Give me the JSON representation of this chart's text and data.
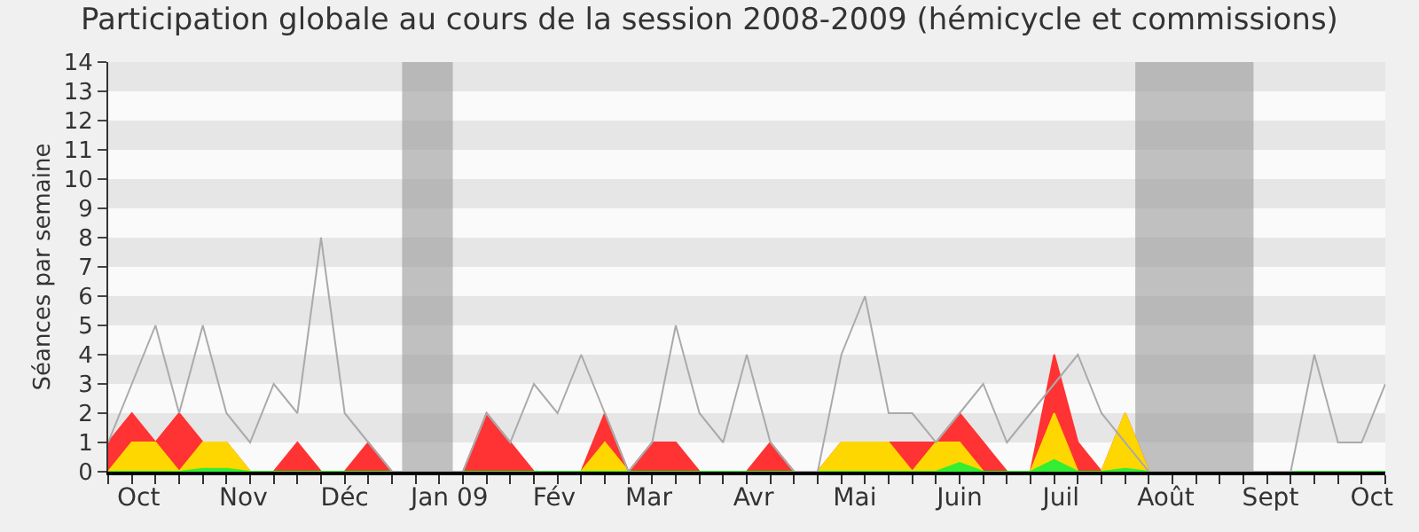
{
  "chart_data": {
    "type": "area",
    "title": "Participation globale au cours de la session 2008-2009 (hémicycle et commissions)",
    "ylabel": "Séances par semaine",
    "x": [
      "2008-09-22",
      "2008-09-29",
      "2008-10-06",
      "2008-10-13",
      "2008-10-20",
      "2008-10-27",
      "2008-11-03",
      "2008-11-10",
      "2008-11-17",
      "2008-11-24",
      "2008-12-01",
      "2008-12-08",
      "2008-12-15",
      "2008-12-22",
      "2008-12-29",
      "2009-01-05",
      "2009-01-12",
      "2009-01-19",
      "2009-01-26",
      "2009-02-02",
      "2009-02-09",
      "2009-02-16",
      "2009-02-23",
      "2009-03-02",
      "2009-03-09",
      "2009-03-16",
      "2009-03-23",
      "2009-03-30",
      "2009-04-06",
      "2009-04-13",
      "2009-04-20",
      "2009-04-27",
      "2009-05-04",
      "2009-05-11",
      "2009-05-18",
      "2009-05-25",
      "2009-06-01",
      "2009-06-08",
      "2009-06-15",
      "2009-06-22",
      "2009-06-29",
      "2009-07-06",
      "2009-07-13",
      "2009-07-20",
      "2009-07-27",
      "2009-08-03",
      "2009-08-10",
      "2009-08-17",
      "2009-08-24",
      "2009-08-31",
      "2009-09-07",
      "2009-09-14",
      "2009-09-21",
      "2009-09-28",
      "2009-10-05"
    ],
    "series": [
      {
        "color": "#ff3333",
        "values": [
          1,
          2,
          1,
          2,
          1,
          1,
          0,
          0,
          1,
          0,
          0,
          1,
          0,
          0,
          0,
          0,
          2,
          1,
          0,
          0,
          0,
          2,
          0,
          1,
          1,
          0,
          0,
          0,
          1,
          0,
          0,
          1,
          1,
          1,
          1,
          1,
          2,
          1,
          0,
          0,
          4,
          1,
          0,
          2,
          0,
          0,
          0,
          0,
          0,
          0,
          0,
          0,
          0,
          0,
          0
        ]
      },
      {
        "color": "#ffd700",
        "values": [
          0,
          1,
          1,
          0,
          1,
          1,
          0,
          0,
          0,
          0,
          0,
          0,
          0,
          0,
          0,
          0,
          0,
          0,
          0,
          0,
          0,
          1,
          0,
          0,
          0,
          0,
          0,
          0,
          0,
          0,
          0,
          1,
          1,
          1,
          0,
          1,
          1,
          0,
          0,
          0,
          2,
          0,
          0,
          2,
          0,
          0,
          0,
          0,
          0,
          0,
          0,
          0,
          0,
          0,
          0
        ]
      },
      {
        "color": "#33ee33",
        "values": [
          0,
          0,
          0,
          0,
          0.1,
          0.1,
          0,
          0,
          0,
          0,
          0,
          0,
          0,
          0,
          0,
          0,
          0,
          0,
          0,
          0,
          0,
          0,
          0,
          0,
          0,
          0,
          0,
          0,
          0,
          0,
          0,
          0,
          0,
          0,
          0,
          0,
          0.3,
          0,
          0,
          0,
          0.4,
          0,
          0,
          0.1,
          0,
          0,
          0,
          0,
          0,
          0,
          0,
          0,
          0,
          0,
          0
        ]
      },
      {
        "type": "line",
        "color": "#aaaaaa",
        "values": [
          1,
          3,
          5,
          2,
          5,
          2,
          1,
          3,
          2,
          8,
          2,
          1,
          0,
          0,
          0,
          0,
          2,
          1,
          3,
          2,
          4,
          2,
          0,
          1,
          5,
          2,
          1,
          4,
          1,
          0,
          0,
          4,
          6,
          2,
          2,
          1,
          2,
          3,
          1,
          2,
          3,
          4,
          2,
          1,
          0,
          0,
          0,
          0,
          0,
          0,
          0,
          4,
          1,
          1,
          3
        ]
      }
    ],
    "xlim": [
      "2008-09-22",
      "2009-10-05"
    ],
    "xticks": [
      {
        "value": "2008-10-01",
        "label": "Oct"
      },
      {
        "value": "2008-11-01",
        "label": "Nov"
      },
      {
        "value": "2008-12-01",
        "label": "Déc"
      },
      {
        "value": "2009-01-01",
        "label": "Jan 09"
      },
      {
        "value": "2009-02-01",
        "label": "Fév"
      },
      {
        "value": "2009-03-01",
        "label": "Mar"
      },
      {
        "value": "2009-04-01",
        "label": "Avr"
      },
      {
        "value": "2009-05-01",
        "label": "Mai"
      },
      {
        "value": "2009-06-01",
        "label": "Juin"
      },
      {
        "value": "2009-07-01",
        "label": "Juil"
      },
      {
        "value": "2009-08-01",
        "label": "Août"
      },
      {
        "value": "2009-09-01",
        "label": "Sept"
      },
      {
        "value": "2009-10-01",
        "label": "Oct"
      },
      {
        "value": "2008-09-22",
        "label": null
      },
      {
        "value": "2008-09-29",
        "label": null
      },
      {
        "value": "2008-10-06",
        "label": null
      },
      {
        "value": "2008-10-13",
        "label": null
      },
      {
        "value": "2008-10-20",
        "label": null
      },
      {
        "value": "2008-10-27",
        "label": null
      },
      {
        "value": "2008-11-03",
        "label": null
      },
      {
        "value": "2008-11-10",
        "label": null
      },
      {
        "value": "2008-11-17",
        "label": null
      },
      {
        "value": "2008-11-24",
        "label": null
      },
      {
        "value": "2008-12-01",
        "label": null
      },
      {
        "value": "2008-12-08",
        "label": null
      },
      {
        "value": "2008-12-15",
        "label": null
      },
      {
        "value": "2008-12-22",
        "label": null
      },
      {
        "value": "2008-12-29",
        "label": null
      },
      {
        "value": "2009-01-05",
        "label": null
      },
      {
        "value": "2009-01-12",
        "label": null
      },
      {
        "value": "2009-01-19",
        "label": null
      },
      {
        "value": "2009-01-26",
        "label": null
      },
      {
        "value": "2009-02-02",
        "label": null
      },
      {
        "value": "2009-02-09",
        "label": null
      },
      {
        "value": "2009-02-16",
        "label": null
      },
      {
        "value": "2009-02-23",
        "label": null
      },
      {
        "value": "2009-03-02",
        "label": null
      },
      {
        "value": "2009-03-09",
        "label": null
      },
      {
        "value": "2009-03-16",
        "label": null
      },
      {
        "value": "2009-03-23",
        "label": null
      },
      {
        "value": "2009-03-30",
        "label": null
      },
      {
        "value": "2009-04-06",
        "label": null
      },
      {
        "value": "2009-04-13",
        "label": null
      },
      {
        "value": "2009-04-20",
        "label": null
      },
      {
        "value": "2009-04-27",
        "label": null
      },
      {
        "value": "2009-05-04",
        "label": null
      },
      {
        "value": "2009-05-11",
        "label": null
      },
      {
        "value": "2009-05-18",
        "label": null
      },
      {
        "value": "2009-05-25",
        "label": null
      },
      {
        "value": "2009-06-01",
        "label": null
      },
      {
        "value": "2009-06-08",
        "label": null
      },
      {
        "value": "2009-06-15",
        "label": null
      },
      {
        "value": "2009-06-22",
        "label": null
      },
      {
        "value": "2009-06-29",
        "label": null
      },
      {
        "value": "2009-07-06",
        "label": null
      },
      {
        "value": "2009-07-13",
        "label": null
      },
      {
        "value": "2009-07-20",
        "label": null
      },
      {
        "value": "2009-07-27",
        "label": null
      },
      {
        "value": "2009-08-03",
        "label": null
      },
      {
        "value": "2009-08-10",
        "label": null
      },
      {
        "value": "2009-08-17",
        "label": null
      },
      {
        "value": "2009-08-24",
        "label": null
      },
      {
        "value": "2009-08-31",
        "label": null
      },
      {
        "value": "2009-09-07",
        "label": null
      },
      {
        "value": "2009-09-14",
        "label": null
      },
      {
        "value": "2009-09-21",
        "label": null
      },
      {
        "value": "2009-09-28",
        "label": null
      },
      {
        "value": "2009-10-05",
        "label": null
      }
    ],
    "ylim": [
      0,
      14
    ],
    "yticks": [
      0,
      1,
      2,
      3,
      4,
      5,
      6,
      7,
      8,
      9,
      10,
      11,
      12,
      13,
      14
    ],
    "bands": [
      {
        "axis": "x",
        "from": "2008-12-18",
        "to": "2009-01-02",
        "color": "#999999"
      },
      {
        "axis": "x",
        "from": "2009-07-23",
        "to": "2009-08-27",
        "color": "#999999"
      }
    ],
    "marker": "none"
  }
}
